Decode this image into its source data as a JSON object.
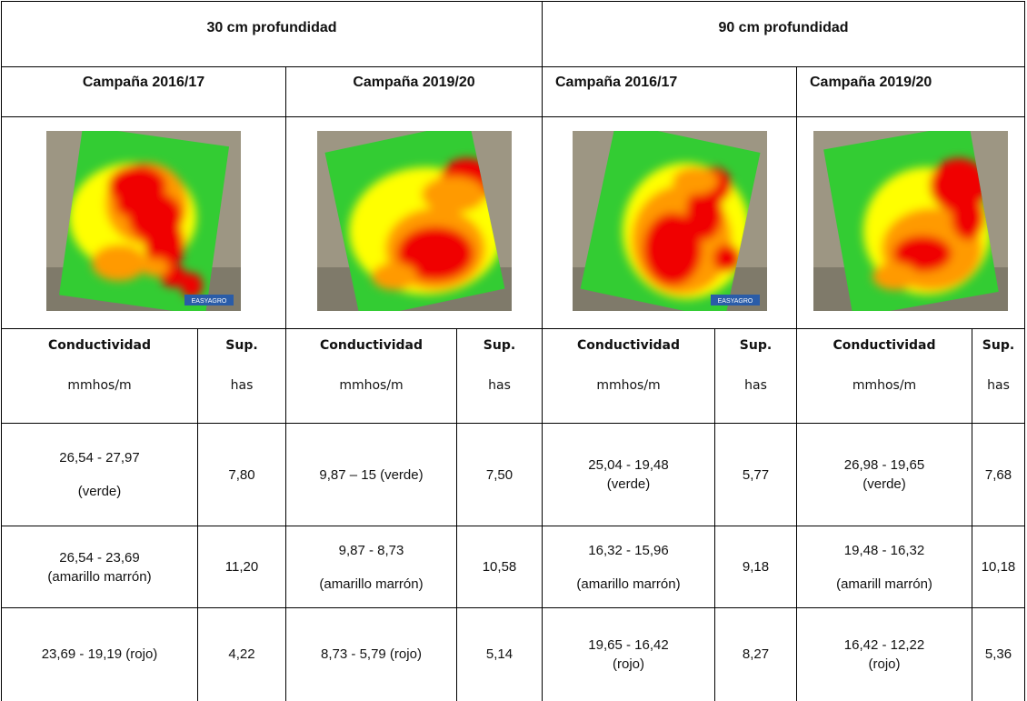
{
  "header": {
    "depths": [
      "30 cm profundidad",
      "90 cm profundidad"
    ],
    "campaigns": [
      "Campaña 2016/17",
      "Campaña 2019/20",
      "Campaña 2016/17",
      "Campaña 2019/20"
    ],
    "watermark": "EASYAGRO"
  },
  "table": {
    "columns": [
      {
        "name": "Conductividad",
        "unit": "mmhos/m"
      },
      {
        "name": "Sup.",
        "unit": "has"
      },
      {
        "name": "Conductividad",
        "unit": "mmhos/m"
      },
      {
        "name": "Sup.",
        "unit": "has"
      },
      {
        "name": "Conductividad",
        "unit": "mmhos/m"
      },
      {
        "name": "Sup.",
        "unit": "has"
      },
      {
        "name": "Conductividad",
        "unit": "mmhos/m"
      },
      {
        "name": "Sup.",
        "unit": "has"
      }
    ],
    "rows": [
      [
        [
          "26,54 - 27,97",
          "(verde)"
        ],
        [
          "7,80"
        ],
        [
          "9,87 – 15 (verde)"
        ],
        [
          "7,50"
        ],
        [
          "25,04 - 19,48",
          "(verde)"
        ],
        [
          "5,77"
        ],
        [
          "26,98 - 19,65",
          "(verde)"
        ],
        [
          "7,68"
        ]
      ],
      [
        [
          "26,54  - 23,69",
          "(amarillo marrón)"
        ],
        [
          "11,20"
        ],
        [
          "9,87 - 8,73",
          "(amarillo marrón)"
        ],
        [
          "10,58"
        ],
        [
          "16,32 - 15,96",
          "(amarillo marrón)"
        ],
        [
          "9,18"
        ],
        [
          "19,48 - 16,32",
          "(amarill marrón)"
        ],
        [
          "10,18"
        ]
      ],
      [
        [
          "23,69 - 19,19 (rojo)"
        ],
        [
          "4,22"
        ],
        [
          "8,73 - 5,79 (rojo)"
        ],
        [
          "5,14"
        ],
        [
          "19,65 - 16,42",
          "(rojo)"
        ],
        [
          "8,27"
        ],
        [
          "16,42 - 12,22",
          "(rojo)"
        ],
        [
          "5,36"
        ]
      ]
    ]
  }
}
